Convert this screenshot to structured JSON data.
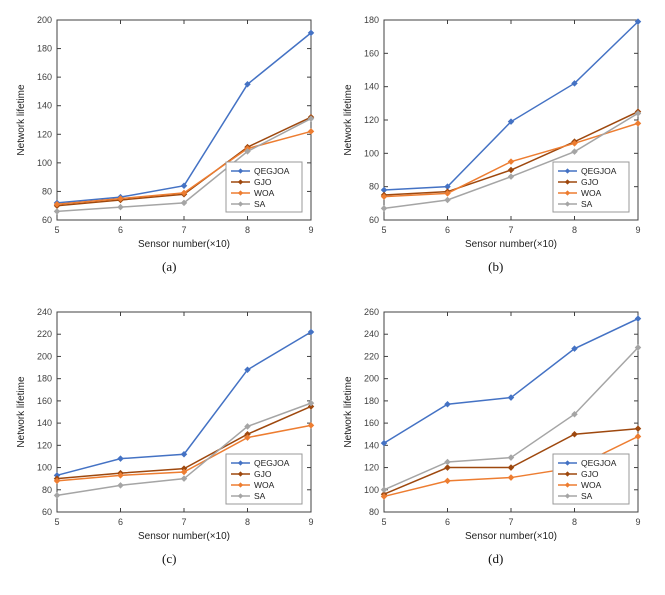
{
  "figure": {
    "axis_color": "#404040",
    "background": "#ffffff"
  },
  "chart_data": [
    {
      "type": "line",
      "caption": "(a)",
      "xlabel": "Sensor number(×10)",
      "ylabel": "Network lifetime",
      "x": [
        5,
        6,
        7,
        8,
        9
      ],
      "ylim": [
        60,
        200
      ],
      "ytick_step": 20,
      "grid": false,
      "legend_position": "bottom-right",
      "markers": "diamond",
      "series": [
        {
          "name": "QEGJOA",
          "color": "#4472C4",
          "values": [
            72,
            76,
            84,
            155,
            191
          ]
        },
        {
          "name": "GJO",
          "color": "#9E480E",
          "values": [
            70,
            74,
            78,
            111,
            132
          ]
        },
        {
          "name": "WOA",
          "color": "#ED7D31",
          "values": [
            71,
            75,
            79,
            110,
            122
          ]
        },
        {
          "name": "SA",
          "color": "#A5A5A5",
          "values": [
            66,
            69,
            72,
            108,
            131
          ]
        }
      ]
    },
    {
      "type": "line",
      "caption": "(b)",
      "xlabel": "Sensor number(×10)",
      "ylabel": "Network lifetime",
      "x": [
        5,
        6,
        7,
        8,
        9
      ],
      "ylim": [
        60,
        180
      ],
      "ytick_step": 20,
      "grid": false,
      "legend_position": "bottom-right",
      "markers": "diamond",
      "series": [
        {
          "name": "QEGJOA",
          "color": "#4472C4",
          "values": [
            78,
            80,
            119,
            142,
            179
          ]
        },
        {
          "name": "GJO",
          "color": "#9E480E",
          "values": [
            75,
            77,
            90,
            107,
            125
          ]
        },
        {
          "name": "WOA",
          "color": "#ED7D31",
          "values": [
            74,
            76,
            95,
            106,
            118
          ]
        },
        {
          "name": "SA",
          "color": "#A5A5A5",
          "values": [
            67,
            72,
            86,
            101,
            124
          ]
        }
      ]
    },
    {
      "type": "line",
      "caption": "(c)",
      "xlabel": "Sensor number(×10)",
      "ylabel": "Network lifetime",
      "x": [
        5,
        6,
        7,
        8,
        9
      ],
      "ylim": [
        60,
        240
      ],
      "ytick_step": 20,
      "grid": false,
      "legend_position": "bottom-right",
      "markers": "diamond",
      "series": [
        {
          "name": "QEGJOA",
          "color": "#4472C4",
          "values": [
            93,
            108,
            112,
            188,
            222
          ]
        },
        {
          "name": "GJO",
          "color": "#9E480E",
          "values": [
            90,
            95,
            99,
            130,
            155
          ]
        },
        {
          "name": "WOA",
          "color": "#ED7D31",
          "values": [
            88,
            93,
            96,
            127,
            138
          ]
        },
        {
          "name": "SA",
          "color": "#A5A5A5",
          "values": [
            75,
            84,
            90,
            137,
            158
          ]
        }
      ]
    },
    {
      "type": "line",
      "caption": "(d)",
      "xlabel": "Sensor number(×10)",
      "ylabel": "Network lifetime",
      "x": [
        5,
        6,
        7,
        8,
        9
      ],
      "ylim": [
        80,
        260
      ],
      "ytick_step": 20,
      "grid": false,
      "legend_position": "bottom-right",
      "markers": "diamond",
      "series": [
        {
          "name": "QEGJOA",
          "color": "#4472C4",
          "values": [
            142,
            177,
            183,
            227,
            254
          ]
        },
        {
          "name": "GJO",
          "color": "#9E480E",
          "values": [
            96,
            120,
            120,
            150,
            155
          ]
        },
        {
          "name": "WOA",
          "color": "#ED7D31",
          "values": [
            94,
            108,
            111,
            120,
            148
          ]
        },
        {
          "name": "SA",
          "color": "#A5A5A5",
          "values": [
            100,
            125,
            129,
            168,
            228
          ]
        }
      ]
    }
  ]
}
